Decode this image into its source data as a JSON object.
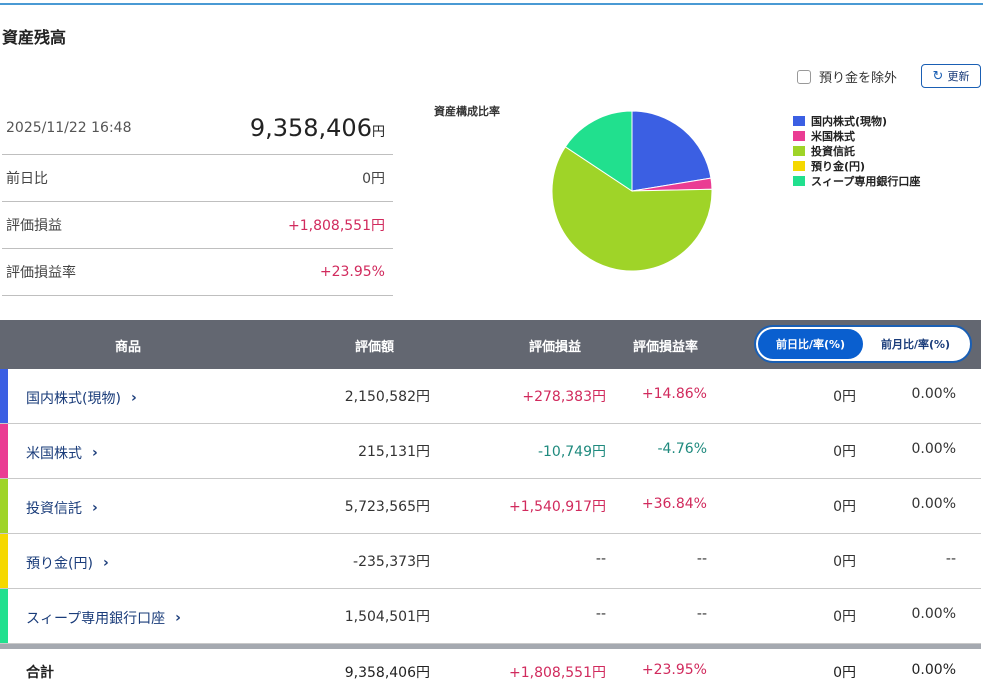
{
  "page": {
    "title": "資産残高"
  },
  "summary": {
    "datetime": "2025/11/22 16:48",
    "total_value": "9,358,406",
    "total_unit": "円",
    "rows": [
      {
        "label": "前日比",
        "value": "0円",
        "tone": "neutral"
      },
      {
        "label": "評価損益",
        "value": "+1,808,551円",
        "tone": "pos"
      },
      {
        "label": "評価損益率",
        "value": "+23.95%",
        "tone": "pos"
      }
    ]
  },
  "controls": {
    "exclude_label": "預り金を除外",
    "refresh_label": "更新",
    "refresh_icon": "refresh-icon"
  },
  "chart_data": {
    "type": "pie",
    "title": "資産構成比率",
    "legend_position": "right",
    "categories": [
      "国内株式(現物)",
      "米国株式",
      "投資信託",
      "預り金(円)",
      "スィープ専用銀行口座"
    ],
    "values": [
      2150582,
      215131,
      5723565,
      0,
      1504501
    ],
    "colors": [
      "#3b5fe3",
      "#ea3c93",
      "#9fd428",
      "#f5d800",
      "#21e08e"
    ]
  },
  "table": {
    "headers": {
      "product": "商品",
      "value": "評価額",
      "pl": "評価損益",
      "pl_rate": "評価損益率"
    },
    "toggle": {
      "daily": "前日比/率(%)",
      "monthly": "前月比/率(%)",
      "active": "daily"
    },
    "rows": [
      {
        "name": "国内株式(現物)",
        "color": "#3b5fe3",
        "value": "2,150,582円",
        "pl": "+278,383円",
        "pl_rate": "+14.86%",
        "pl_tone": "pos",
        "diff": "0円",
        "diff_rate": "0.00%"
      },
      {
        "name": "米国株式",
        "color": "#ea3c93",
        "value": "215,131円",
        "pl": "-10,749円",
        "pl_rate": "-4.76%",
        "pl_tone": "neg",
        "diff": "0円",
        "diff_rate": "0.00%"
      },
      {
        "name": "投資信託",
        "color": "#9fd428",
        "value": "5,723,565円",
        "pl": "+1,540,917円",
        "pl_rate": "+36.84%",
        "pl_tone": "pos",
        "diff": "0円",
        "diff_rate": "0.00%"
      },
      {
        "name": "預り金(円)",
        "color": "#f5d800",
        "value": "-235,373円",
        "pl": "--",
        "pl_rate": "--",
        "pl_tone": "neutral",
        "diff": "0円",
        "diff_rate": "--"
      },
      {
        "name": "スィープ専用銀行口座",
        "color": "#21e08e",
        "value": "1,504,501円",
        "pl": "--",
        "pl_rate": "--",
        "pl_tone": "neutral",
        "diff": "0円",
        "diff_rate": "0.00%"
      }
    ],
    "total": {
      "label": "合計",
      "value": "9,358,406円",
      "pl": "+1,808,551円",
      "pl_rate": "+23.95%",
      "diff": "0円",
      "diff_rate": "0.00%"
    }
  }
}
